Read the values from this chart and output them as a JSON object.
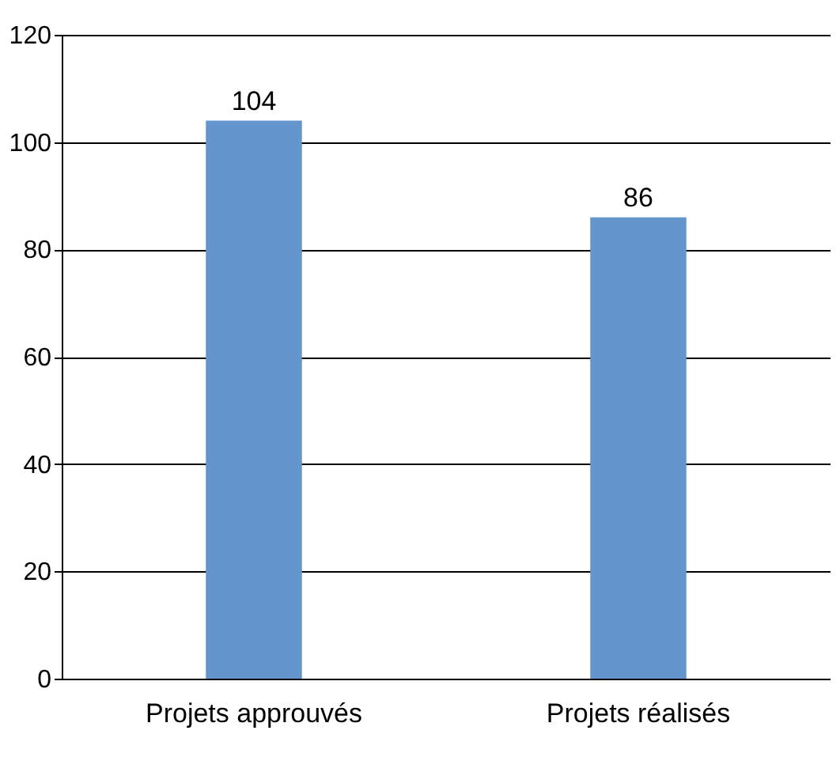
{
  "chart_data": {
    "type": "bar",
    "categories": [
      "Projets approuvés",
      "Projets réalisés"
    ],
    "values": [
      104,
      86
    ],
    "color": "#6495cd",
    "ylim": [
      0,
      120
    ],
    "yticks": [
      0,
      20,
      40,
      60,
      80,
      100,
      120
    ],
    "grid": "y",
    "data_labels": true
  }
}
